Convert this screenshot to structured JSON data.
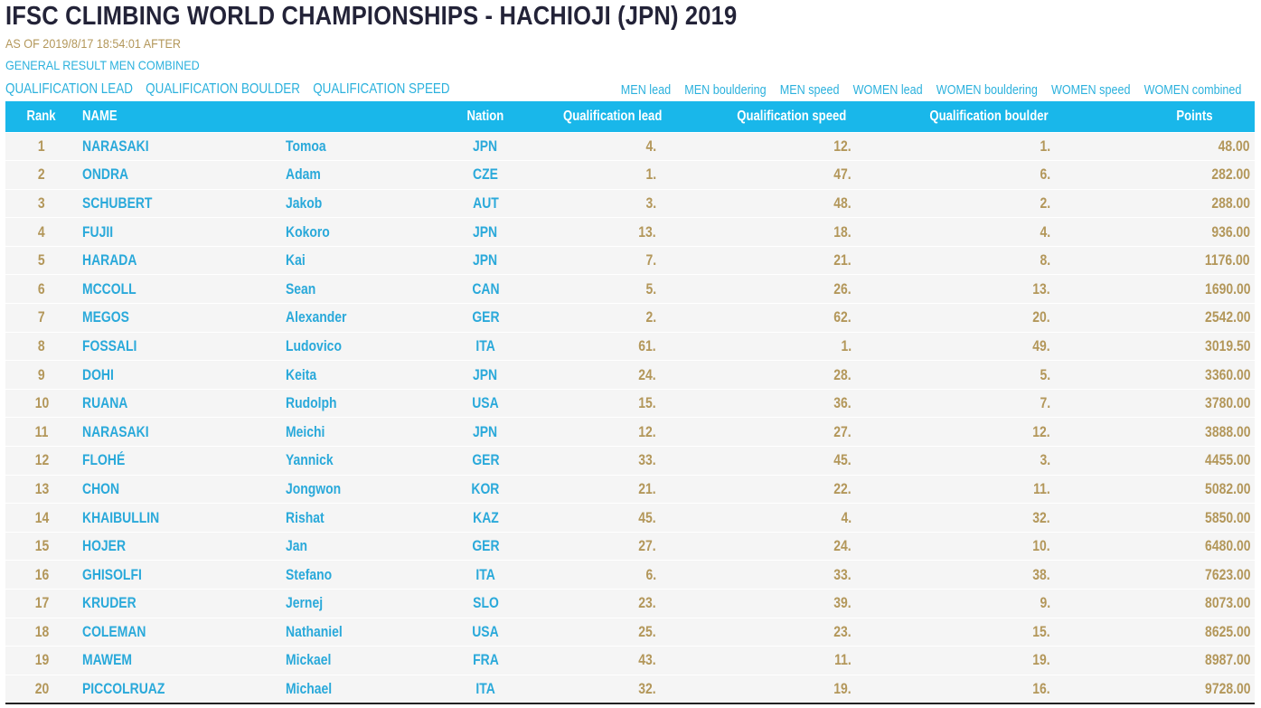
{
  "header": {
    "title": "IFSC CLIMBING WORLD CHAMPIONSHIPS - HACHIOJI (JPN) 2019",
    "as_of": "AS OF 2019/8/17 18:54:01 AFTER",
    "general_result": "GENERAL RESULT MEN COMBINED"
  },
  "qualification_links": [
    "QUALIFICATION LEAD",
    "QUALIFICATION BOULDER",
    "QUALIFICATION SPEED"
  ],
  "category_links": [
    "MEN lead",
    "MEN bouldering",
    "MEN speed",
    "WOMEN lead",
    "WOMEN bouldering",
    "WOMEN speed",
    "WOMEN combined"
  ],
  "table": {
    "columns": [
      "Rank",
      "NAME",
      "Nation",
      "Qualification lead",
      "Qualification speed",
      "Qualification boulder",
      "Points"
    ],
    "rows": [
      {
        "rank": "1",
        "last": "NARASAKI",
        "first": "Tomoa",
        "nation": "JPN",
        "lead": "4.",
        "speed": "12.",
        "boulder": "1.",
        "points": "48.00"
      },
      {
        "rank": "2",
        "last": "ONDRA",
        "first": "Adam",
        "nation": "CZE",
        "lead": "1.",
        "speed": "47.",
        "boulder": "6.",
        "points": "282.00"
      },
      {
        "rank": "3",
        "last": "SCHUBERT",
        "first": "Jakob",
        "nation": "AUT",
        "lead": "3.",
        "speed": "48.",
        "boulder": "2.",
        "points": "288.00"
      },
      {
        "rank": "4",
        "last": "FUJII",
        "first": "Kokoro",
        "nation": "JPN",
        "lead": "13.",
        "speed": "18.",
        "boulder": "4.",
        "points": "936.00"
      },
      {
        "rank": "5",
        "last": "HARADA",
        "first": "Kai",
        "nation": "JPN",
        "lead": "7.",
        "speed": "21.",
        "boulder": "8.",
        "points": "1176.00"
      },
      {
        "rank": "6",
        "last": "MCCOLL",
        "first": "Sean",
        "nation": "CAN",
        "lead": "5.",
        "speed": "26.",
        "boulder": "13.",
        "points": "1690.00"
      },
      {
        "rank": "7",
        "last": "MEGOS",
        "first": "Alexander",
        "nation": "GER",
        "lead": "2.",
        "speed": "62.",
        "boulder": "20.",
        "points": "2542.00"
      },
      {
        "rank": "8",
        "last": "FOSSALI",
        "first": "Ludovico",
        "nation": "ITA",
        "lead": "61.",
        "speed": "1.",
        "boulder": "49.",
        "points": "3019.50"
      },
      {
        "rank": "9",
        "last": "DOHI",
        "first": "Keita",
        "nation": "JPN",
        "lead": "24.",
        "speed": "28.",
        "boulder": "5.",
        "points": "3360.00"
      },
      {
        "rank": "10",
        "last": "RUANA",
        "first": "Rudolph",
        "nation": "USA",
        "lead": "15.",
        "speed": "36.",
        "boulder": "7.",
        "points": "3780.00"
      },
      {
        "rank": "11",
        "last": "NARASAKI",
        "first": "Meichi",
        "nation": "JPN",
        "lead": "12.",
        "speed": "27.",
        "boulder": "12.",
        "points": "3888.00"
      },
      {
        "rank": "12",
        "last": "FLOHÉ",
        "first": "Yannick",
        "nation": "GER",
        "lead": "33.",
        "speed": "45.",
        "boulder": "3.",
        "points": "4455.00"
      },
      {
        "rank": "13",
        "last": "CHON",
        "first": "Jongwon",
        "nation": "KOR",
        "lead": "21.",
        "speed": "22.",
        "boulder": "11.",
        "points": "5082.00"
      },
      {
        "rank": "14",
        "last": "KHAIBULLIN",
        "first": "Rishat",
        "nation": "KAZ",
        "lead": "45.",
        "speed": "4.",
        "boulder": "32.",
        "points": "5850.00"
      },
      {
        "rank": "15",
        "last": "HOJER",
        "first": "Jan",
        "nation": "GER",
        "lead": "27.",
        "speed": "24.",
        "boulder": "10.",
        "points": "6480.00"
      },
      {
        "rank": "16",
        "last": "GHISOLFI",
        "first": "Stefano",
        "nation": "ITA",
        "lead": "6.",
        "speed": "33.",
        "boulder": "38.",
        "points": "7623.00"
      },
      {
        "rank": "17",
        "last": "KRUDER",
        "first": "Jernej",
        "nation": "SLO",
        "lead": "23.",
        "speed": "39.",
        "boulder": "9.",
        "points": "8073.00"
      },
      {
        "rank": "18",
        "last": "COLEMAN",
        "first": "Nathaniel",
        "nation": "USA",
        "lead": "25.",
        "speed": "23.",
        "boulder": "15.",
        "points": "8625.00"
      },
      {
        "rank": "19",
        "last": "MAWEM",
        "first": "Mickael",
        "nation": "FRA",
        "lead": "43.",
        "speed": "11.",
        "boulder": "19.",
        "points": "8987.00"
      },
      {
        "rank": "20",
        "last": "PICCOLRUAZ",
        "first": "Michael",
        "nation": "ITA",
        "lead": "32.",
        "speed": "19.",
        "boulder": "16.",
        "points": "9728.00"
      }
    ]
  },
  "colors": {
    "header_bg": "#19b7ea",
    "gold": "#b3975a",
    "blue": "#2aa9da",
    "title": "#232338"
  }
}
